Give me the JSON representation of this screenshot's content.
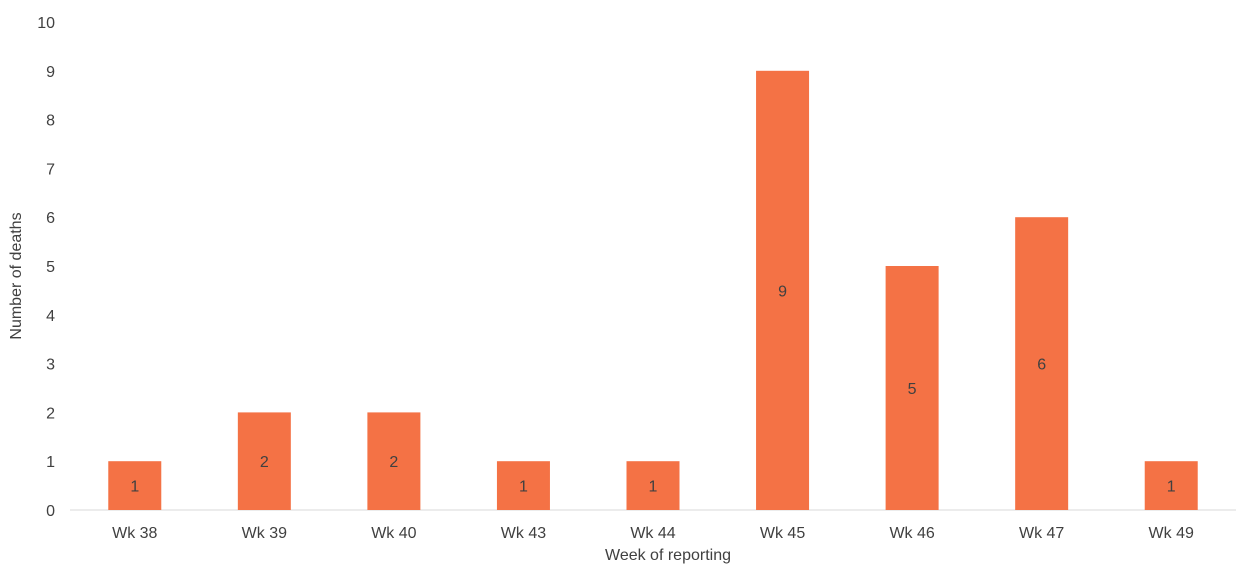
{
  "chart_data": {
    "type": "bar",
    "categories": [
      "Wk 38",
      "Wk 39",
      "Wk 40",
      "Wk 43",
      "Wk 44",
      "Wk 45",
      "Wk 46",
      "Wk 47",
      "Wk 49"
    ],
    "values": [
      1,
      2,
      2,
      1,
      1,
      9,
      5,
      6,
      1
    ],
    "xlabel": "Week of reporting",
    "ylabel": "Number of deaths",
    "ylim": [
      0,
      10
    ],
    "yticks": [
      0,
      1,
      2,
      3,
      4,
      5,
      6,
      7,
      8,
      9,
      10
    ],
    "grid": false,
    "legend": "none",
    "bar_color": "#F47245",
    "data_labels": true
  }
}
